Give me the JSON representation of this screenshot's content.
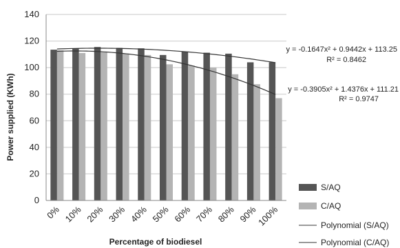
{
  "chart_data": {
    "type": "bar",
    "categories": [
      "0%",
      "10%",
      "20%",
      "30%",
      "40%",
      "50%",
      "60%",
      "70%",
      "80%",
      "90%",
      "100%"
    ],
    "series": [
      {
        "name": "S/AQ",
        "color": "#555555",
        "values": [
          113.5,
          114.5,
          115.5,
          114.8,
          114.5,
          109.5,
          112.0,
          111.2,
          110.5,
          104.0,
          104.0
        ]
      },
      {
        "name": "C/AQ",
        "color": "#b4b4b4",
        "values": [
          113.0,
          111.0,
          111.5,
          110.5,
          109.5,
          102.5,
          101.5,
          100.0,
          95.0,
          87.5,
          77.0
        ]
      }
    ],
    "trendlines": [
      {
        "name": "Polynomial (S/AQ)",
        "series": "S/AQ",
        "coefficients": [
          -0.1647,
          0.9442,
          113.25
        ]
      },
      {
        "name": "Polynomial (C/AQ)",
        "series": "C/AQ",
        "coefficients": [
          -0.3905,
          1.4376,
          111.21
        ]
      }
    ],
    "annotations": [
      {
        "equation": "y = -0.1647x² + 0.9442x + 113.25",
        "r2": "R² = 0.8462"
      },
      {
        "equation": "y = -0.3905x² + 1.4376x + 111.21",
        "r2": "R² = 0.9747"
      }
    ],
    "xlabel": "Percentage of biodiesel",
    "ylabel": "Power supplied (KWh)",
    "ylim": [
      0,
      140
    ],
    "yticks": [
      0,
      20,
      40,
      60,
      80,
      100,
      120,
      140
    ],
    "grid": true,
    "legend": "bottom-right"
  }
}
